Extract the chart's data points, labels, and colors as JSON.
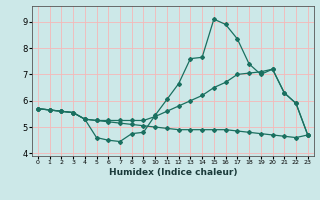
{
  "xlabel": "Humidex (Indice chaleur)",
  "bg_color": "#cce8e8",
  "grid_color": "#f5b8b8",
  "line_color": "#1a7060",
  "xlim": [
    -0.5,
    23.5
  ],
  "ylim": [
    3.9,
    9.6
  ],
  "xticks": [
    0,
    1,
    2,
    3,
    4,
    5,
    6,
    7,
    8,
    9,
    10,
    11,
    12,
    13,
    14,
    15,
    16,
    17,
    18,
    19,
    20,
    21,
    22,
    23
  ],
  "yticks": [
    4,
    5,
    6,
    7,
    8,
    9
  ],
  "line1_x": [
    0,
    1,
    2,
    3,
    4,
    5,
    6,
    7,
    8,
    9,
    10,
    11,
    12,
    13,
    14,
    15,
    16,
    17,
    18,
    19,
    20,
    21,
    22,
    23
  ],
  "line1_y": [
    5.7,
    5.65,
    5.6,
    5.55,
    5.3,
    5.25,
    5.25,
    5.25,
    5.25,
    5.25,
    5.4,
    5.6,
    5.8,
    6.0,
    6.2,
    6.5,
    6.7,
    7.0,
    7.05,
    7.1,
    7.2,
    6.3,
    5.9,
    4.7
  ],
  "line2_x": [
    0,
    1,
    2,
    3,
    4,
    5,
    6,
    7,
    8,
    9,
    10,
    11,
    12,
    13,
    14,
    15,
    16,
    17,
    18,
    19,
    20,
    21,
    22,
    23
  ],
  "line2_y": [
    5.7,
    5.65,
    5.6,
    5.55,
    5.3,
    4.6,
    4.5,
    4.45,
    4.75,
    4.8,
    5.45,
    6.05,
    6.65,
    7.6,
    7.65,
    9.1,
    8.9,
    8.35,
    7.4,
    7.0,
    7.2,
    6.3,
    5.9,
    4.7
  ],
  "line3_x": [
    0,
    1,
    2,
    3,
    4,
    5,
    6,
    7,
    8,
    9,
    10,
    11,
    12,
    13,
    14,
    15,
    16,
    17,
    18,
    19,
    20,
    21,
    22,
    23
  ],
  "line3_y": [
    5.7,
    5.65,
    5.6,
    5.55,
    5.3,
    5.25,
    5.2,
    5.15,
    5.1,
    5.05,
    5.0,
    4.95,
    4.9,
    4.9,
    4.9,
    4.9,
    4.9,
    4.85,
    4.8,
    4.75,
    4.7,
    4.65,
    4.6,
    4.7
  ]
}
